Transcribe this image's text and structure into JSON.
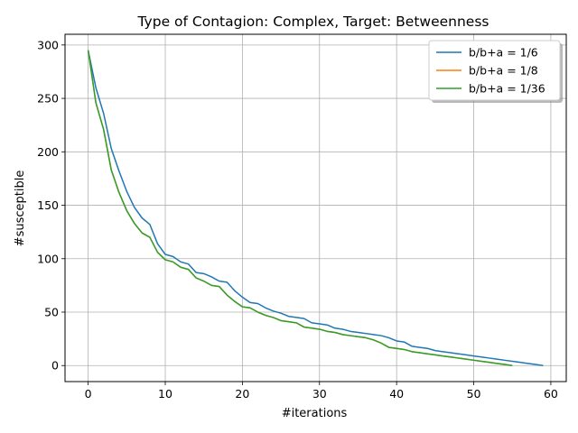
{
  "chart_data": {
    "type": "line",
    "title": "Type of Contagion: Complex, Target: Betweenness",
    "xlabel": "#iterations",
    "ylabel": "#susceptible",
    "xlim": [
      -3,
      62
    ],
    "ylim": [
      -15,
      310
    ],
    "xticks": [
      0,
      10,
      20,
      30,
      40,
      50,
      60
    ],
    "yticks": [
      0,
      50,
      100,
      150,
      200,
      250,
      300
    ],
    "grid": true,
    "legend_position": "top-right",
    "series": [
      {
        "name": "b/b+a = 1/6",
        "color": "#1f77b4",
        "x": [
          0,
          1,
          2,
          3,
          4,
          5,
          6,
          7,
          8,
          9,
          10,
          11,
          12,
          13,
          14,
          15,
          16,
          17,
          18,
          19,
          20,
          21,
          22,
          23,
          24,
          25,
          26,
          27,
          28,
          29,
          30,
          31,
          32,
          33,
          34,
          35,
          36,
          37,
          38,
          39,
          40,
          41,
          42,
          43,
          44,
          45,
          46,
          47,
          48,
          49,
          50,
          51,
          52,
          53,
          54,
          55,
          56,
          57,
          58,
          59
        ],
        "y": [
          295,
          260,
          236,
          203,
          182,
          163,
          148,
          138,
          132,
          114,
          104,
          102,
          97,
          95,
          87,
          86,
          83,
          79,
          78,
          70,
          64,
          59,
          58,
          54,
          51,
          49,
          46,
          45,
          44,
          40,
          39,
          38,
          35,
          34,
          32,
          31,
          30,
          29,
          28,
          26,
          23,
          22,
          18,
          17,
          16,
          14,
          13,
          12,
          11,
          10,
          9,
          8,
          7,
          6,
          5,
          4,
          3,
          2,
          1,
          0
        ]
      },
      {
        "name": "b/b+a = 1/8",
        "color": "#ff7f0e",
        "x": [
          0,
          1,
          2,
          3,
          4,
          5,
          6,
          7,
          8,
          9,
          10,
          11,
          12,
          13,
          14,
          15,
          16,
          17,
          18,
          19,
          20,
          21,
          22,
          23,
          24,
          25,
          26,
          27,
          28,
          29,
          30,
          31,
          32,
          33,
          34,
          35,
          36,
          37,
          38,
          39,
          40,
          41,
          42,
          43,
          44,
          45,
          46,
          47,
          48,
          49,
          50,
          51,
          52,
          53,
          54,
          55
        ],
        "y": [
          295,
          246,
          221,
          183,
          162,
          145,
          133,
          124,
          120,
          106,
          99,
          97,
          92,
          90,
          82,
          79,
          75,
          74,
          66,
          60,
          55,
          54,
          50,
          47,
          45,
          42,
          41,
          40,
          36,
          35,
          34,
          32,
          31,
          29,
          28,
          27,
          26,
          24,
          21,
          17,
          16,
          15,
          13,
          12,
          11,
          10,
          9,
          8,
          7,
          6,
          5,
          4,
          3,
          2,
          1,
          0
        ]
      },
      {
        "name": "b/b+a = 1/36",
        "color": "#2ca02c",
        "x": [
          0,
          1,
          2,
          3,
          4,
          5,
          6,
          7,
          8,
          9,
          10,
          11,
          12,
          13,
          14,
          15,
          16,
          17,
          18,
          19,
          20,
          21,
          22,
          23,
          24,
          25,
          26,
          27,
          28,
          29,
          30,
          31,
          32,
          33,
          34,
          35,
          36,
          37,
          38,
          39,
          40,
          41,
          42,
          43,
          44,
          45,
          46,
          47,
          48,
          49,
          50,
          51,
          52,
          53,
          54,
          55
        ],
        "y": [
          295,
          246,
          221,
          183,
          162,
          145,
          133,
          124,
          120,
          106,
          99,
          97,
          92,
          90,
          82,
          79,
          75,
          74,
          66,
          60,
          55,
          54,
          50,
          47,
          45,
          42,
          41,
          40,
          36,
          35,
          34,
          32,
          31,
          29,
          28,
          27,
          26,
          24,
          21,
          17,
          16,
          15,
          13,
          12,
          11,
          10,
          9,
          8,
          7,
          6,
          5,
          4,
          3,
          2,
          1,
          0
        ]
      }
    ]
  }
}
